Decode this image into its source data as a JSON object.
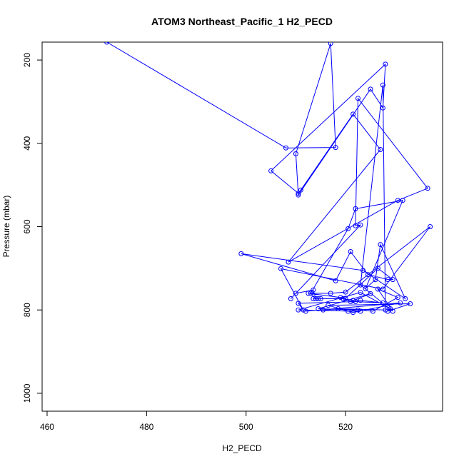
{
  "chart_data": {
    "type": "line",
    "title": "ATOM3 Northeast_Pacific_1 H2_PECD",
    "xlabel": "H2_PECD",
    "ylabel": "Pressure (mbar)",
    "xlim": [
      459,
      539.5
    ],
    "ylim": [
      1043,
      157
    ],
    "y_reversed": true,
    "x_ticks": [
      "460",
      "480",
      "500",
      "520"
    ],
    "y_ticks": [
      "200",
      "400",
      "600",
      "800",
      "1000"
    ],
    "series_color": "#0000ff",
    "series": [
      {
        "x": [
          472.0,
          508.0,
          518.0,
          517.0,
          510.0,
          510.5,
          525.0,
          527.5,
          528.0,
          505.0,
          510.5,
          511.0,
          521.5,
          527.0,
          508.5,
          530.5,
          536.5,
          522.5,
          522.0,
          523.0,
          509.0,
          510.0,
          513.5,
          514.0,
          513.0,
          520.5,
          522.0,
          531.5,
          524.0,
          526.0,
          527.0,
          532.0,
          523.5,
          499.0,
          518.0,
          521.0,
          524.5,
          528.5,
          529.5,
          526.5,
          520.0,
          514.5,
          513.5,
          515.0,
          519.5,
          521.5,
          523.0,
          527.5,
          522.0,
          510.5,
          511.5,
          507.0,
          527.5,
          537.0,
          520.0,
          517.0,
          512.5,
          519.0,
          521.0,
          525.0,
          514.5,
          522.5,
          525.5,
          530.5,
          526.5,
          529.5,
          523.0,
          527.5,
          528.0,
          518.5,
          515.5,
          520.5,
          523.0,
          510.5,
          523.0,
          529.0,
          528.5,
          533.0,
          516.5,
          521.5,
          531.0,
          512.0
        ],
        "y": [
          157,
          411,
          410,
          160,
          425,
          524,
          270,
          315,
          210,
          466,
          520,
          512,
          330,
          415,
          685,
          537,
          508,
          292,
          598,
          596,
          773,
          760,
          752,
          773,
          760,
          605,
          557,
          537,
          749,
          727,
          643,
          773,
          705,
          665,
          730,
          660,
          715,
          727,
          727,
          700,
          772,
          773,
          773,
          773,
          773,
          777,
          777,
          783,
          780,
          784,
          800,
          701,
          750,
          600,
          757,
          760,
          760,
          770,
          780,
          761,
          797,
          800,
          803,
          770,
          750,
          803,
          740,
          260,
          800,
          797,
          800,
          803,
          803,
          800,
          758,
          797,
          803,
          785,
          789,
          806,
          783,
          803
        ]
      }
    ]
  }
}
